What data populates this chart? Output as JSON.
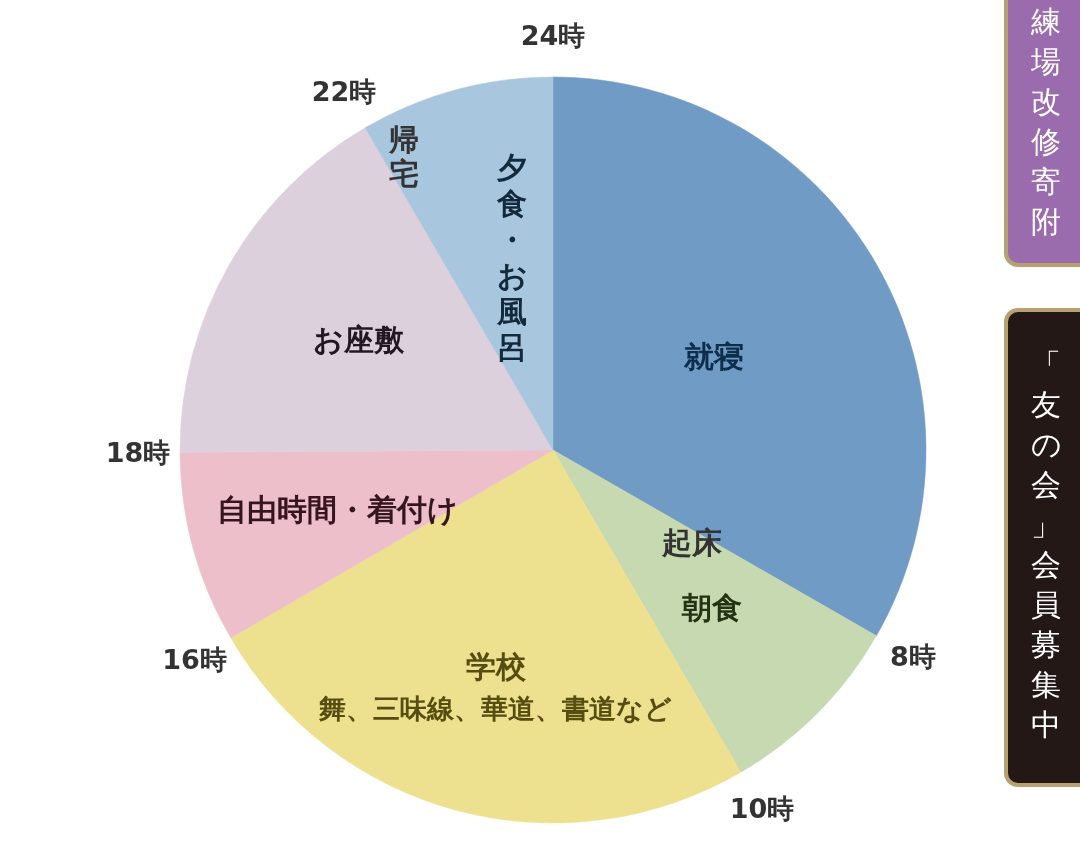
{
  "chart_data": {
    "type": "pie",
    "categories": [
      "就寝",
      "朝食",
      "学校",
      "自由時間・着付け",
      "お座敷",
      "夕食・お風呂"
    ],
    "values": [
      33.3,
      8.3,
      25,
      8.3,
      16.7,
      8.4
    ],
    "colors": [
      "#6f9bc4",
      "#c6d9b0",
      "#ede08e",
      "#ecbfcb",
      "#ddd0dd",
      "#a9c6df"
    ],
    "annotations": [
      {
        "text": "起床",
        "x": "朝食"
      },
      {
        "text": "舞、三味線、華道、書道など",
        "x": "学校"
      },
      {
        "text": "帰宅",
        "x": "夕食・お風呂"
      },
      "24時",
      "8時",
      "10時",
      "16時",
      "18時",
      "22時",
      "練場改修寄附",
      "「友の会」会員募集中"
    ]
  }
}
